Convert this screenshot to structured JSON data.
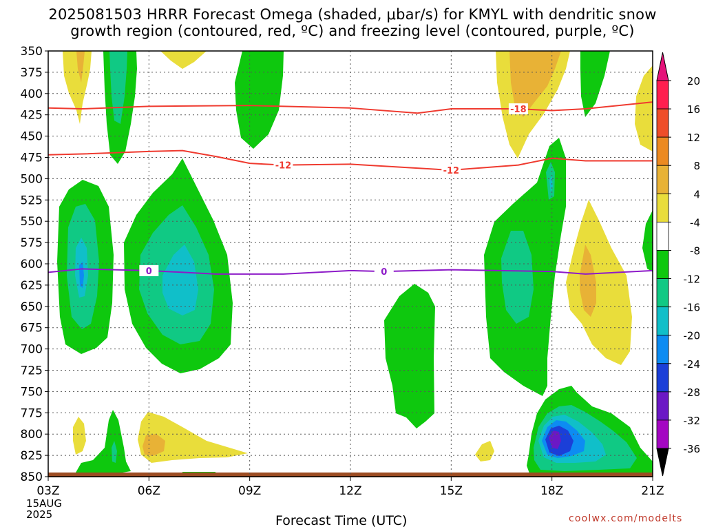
{
  "title_line1": "2025081503 HRRR Forecast Omega (shaded, μbar/s) for KMYL with dendritic snow",
  "title_line2": "growth region (contoured, red, ºC) and freezing level (contoured, purple, ºC)",
  "xlabel": "Forecast Time (UTC)",
  "credit": "coolwx.com/modelts",
  "date_line1": "15AUG",
  "date_line2": "2025",
  "chart_data": {
    "type": "heatmap",
    "title": "2025081503 HRRR Forecast Omega (shaded, μbar/s) for KMYL with dendritic snow growth region (contoured, red, ºC) and freezing level (contoured, purple, ºC)",
    "xlabel": "Forecast Time (UTC)",
    "ylabel": "",
    "x_ticks": [
      "03Z",
      "06Z",
      "09Z",
      "12Z",
      "15Z",
      "18Z",
      "21Z"
    ],
    "x_range_hours": [
      3,
      21
    ],
    "y_ticks": [
      350,
      375,
      400,
      425,
      450,
      475,
      500,
      525,
      550,
      575,
      600,
      625,
      650,
      675,
      700,
      725,
      750,
      775,
      800,
      825,
      850
    ],
    "y_range_mb": [
      350,
      850
    ],
    "y_inverted": true,
    "grid": true,
    "colorbar": {
      "labels": [
        "20",
        "16",
        "12",
        "8",
        "4",
        "-4",
        "-8",
        "-12",
        "-16",
        "-20",
        "-24",
        "-28",
        "-32",
        "-36"
      ],
      "levels": [
        20,
        16,
        12,
        8,
        4,
        -4,
        -8,
        -12,
        -16,
        -20,
        -24,
        -28,
        -32,
        -36
      ],
      "colors": [
        "#ff1f4f",
        "#ef4e29",
        "#ec8a21",
        "#e8b236",
        "#e9dd3b",
        "#ffffff",
        "#0ec80e",
        "#10c984",
        "#10bfc9",
        "#0d8cf2",
        "#1b3fd8",
        "#6b18c5",
        "#a406c2",
        "#a8a8a8"
      ],
      "top_arrow_color": "#e5137a",
      "bottom_arrow_color": "#000000"
    },
    "contours": [
      {
        "name": "-18",
        "color": "#ef3a2f",
        "label_positions_hours": [
          17.0
        ],
        "x": [
          3.0,
          4.0,
          6.0,
          9.0,
          12.0,
          14.0,
          15.0,
          17.0,
          18.0,
          19.0,
          21.0
        ],
        "y": [
          417,
          418,
          415,
          414,
          417,
          423,
          418,
          418,
          420,
          418,
          410
        ]
      },
      {
        "name": "-12",
        "color": "#ef3a2f",
        "label_positions_hours": [
          10.0,
          15.0
        ],
        "x": [
          3.0,
          4.0,
          6.0,
          7.0,
          8.0,
          9.0,
          10.0,
          12.0,
          15.0,
          17.0,
          18.0,
          19.0,
          21.0
        ],
        "y": [
          472,
          471,
          468,
          467,
          474,
          482,
          484,
          483,
          490,
          484,
          476,
          479,
          479
        ]
      },
      {
        "name": "0",
        "color": "#8d1bc8",
        "label_positions_hours": [
          6.0,
          13.0
        ],
        "x": [
          3.0,
          4.0,
          6.0,
          8.0,
          10.0,
          12.0,
          13.0,
          15.0,
          18.0,
          19.0,
          21.0
        ],
        "y": [
          610,
          606,
          608,
          612,
          612,
          608,
          609,
          607,
          609,
          612,
          608
        ]
      }
    ],
    "omega_regions": [
      {
        "level": "-4 to -8",
        "x": [
          4.8,
          5.2,
          5.2,
          4.8
        ],
        "y": [
          350,
          350,
          440,
          440
        ]
      },
      {
        "level": "-8 to -12",
        "x": [
          6.1,
          7.0,
          8.2,
          6.9
        ],
        "y": [
          500,
          440,
          640,
          680
        ]
      },
      {
        "level": "-12 to -16",
        "x": [
          6.5,
          7.0,
          7.4,
          6.9
        ],
        "y": [
          560,
          530,
          590,
          620
        ]
      },
      {
        "level": "-24 to -28",
        "x": [
          17.9,
          18.1,
          18.1,
          17.9
        ],
        "y": [
          780,
          780,
          800,
          800
        ]
      },
      {
        "level": "4 to 8",
        "x": [
          17.0,
          18.0,
          18.0,
          17.0
        ],
        "y": [
          350,
          350,
          440,
          440
        ]
      },
      {
        "level": "8 to 12",
        "x": [
          19.0,
          20.0,
          19.5
        ],
        "y": [
          510,
          560,
          640
        ]
      }
    ]
  }
}
